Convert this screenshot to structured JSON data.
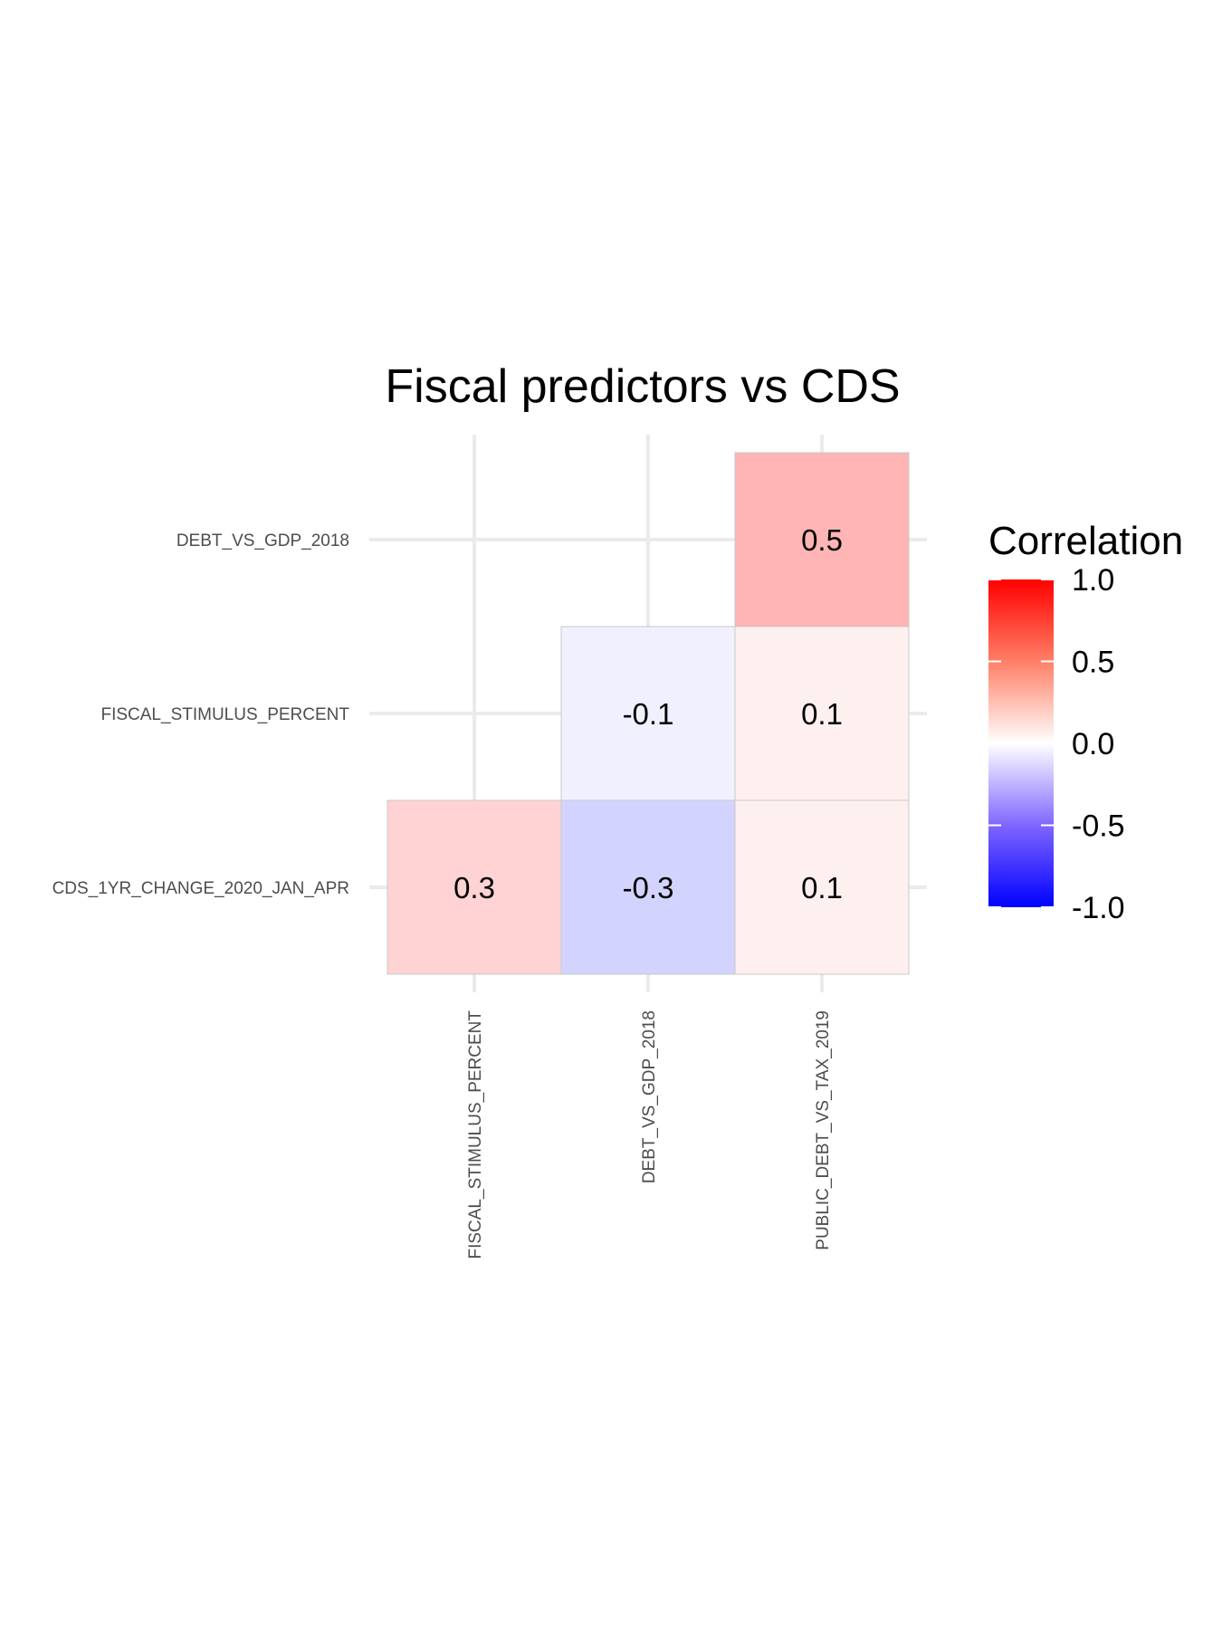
{
  "chart_data": {
    "type": "heatmap",
    "title": "Fiscal predictors vs CDS",
    "xlabel": "",
    "ylabel": "",
    "x_categories": [
      "FISCAL_STIMULUS_PERCENT",
      "DEBT_VS_GDP_2018",
      "PUBLIC_DEBT_VS_TAX_2019"
    ],
    "y_categories": [
      "CDS_1YR_CHANGE_2020_JAN_APR",
      "FISCAL_STIMULUS_PERCENT",
      "DEBT_VS_GDP_2018"
    ],
    "cells": [
      {
        "x": "FISCAL_STIMULUS_PERCENT",
        "y": "CDS_1YR_CHANGE_2020_JAN_APR",
        "value": 0.3,
        "label": "0.3"
      },
      {
        "x": "DEBT_VS_GDP_2018",
        "y": "CDS_1YR_CHANGE_2020_JAN_APR",
        "value": -0.3,
        "label": "-0.3"
      },
      {
        "x": "PUBLIC_DEBT_VS_TAX_2019",
        "y": "CDS_1YR_CHANGE_2020_JAN_APR",
        "value": 0.1,
        "label": "0.1"
      },
      {
        "x": "DEBT_VS_GDP_2018",
        "y": "FISCAL_STIMULUS_PERCENT",
        "value": -0.1,
        "label": "-0.1"
      },
      {
        "x": "PUBLIC_DEBT_VS_TAX_2019",
        "y": "FISCAL_STIMULUS_PERCENT",
        "value": 0.1,
        "label": "0.1"
      },
      {
        "x": "PUBLIC_DEBT_VS_TAX_2019",
        "y": "DEBT_VS_GDP_2018",
        "value": 0.5,
        "label": "0.5"
      }
    ],
    "legend": {
      "title": "Correlation",
      "position": "right",
      "range": [
        -1.0,
        1.0
      ],
      "ticks": [
        {
          "value": 1.0,
          "label": "1.0"
        },
        {
          "value": 0.5,
          "label": "0.5"
        },
        {
          "value": 0.0,
          "label": "0.0"
        },
        {
          "value": -0.5,
          "label": "-0.5"
        },
        {
          "value": -1.0,
          "label": "-1.0"
        }
      ],
      "colors": {
        "low": "#0000ff",
        "mid": "#ffffff",
        "high": "#ff0000"
      }
    },
    "grid": true,
    "grid_color": "#ebebeb",
    "cell_border_color": "#c8c8c8"
  }
}
